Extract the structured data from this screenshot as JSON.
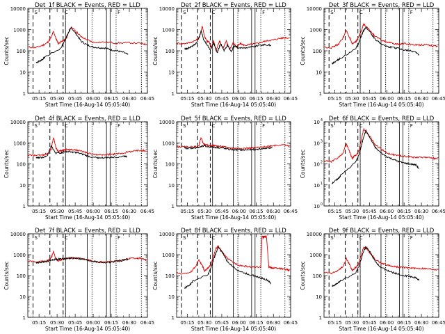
{
  "figure": {
    "panels": [
      {
        "id": "1f",
        "title": "Det_1f BLACK = Events, RED = LLD"
      },
      {
        "id": "2f",
        "title": "Det_2f BLACK = Events, RED = LLD"
      },
      {
        "id": "3f",
        "title": "Det_3f BLACK = Events, RED = LLD"
      },
      {
        "id": "4f",
        "title": "Det_4f BLACK = Events, RED = LLD"
      },
      {
        "id": "5f",
        "title": "Det_5f BLACK = Events, RED = LLD"
      },
      {
        "id": "6f",
        "title": "Det_6f BLACK = Events, RED = LLD"
      },
      {
        "id": "7f",
        "title": "Det_7f BLACK = Events, RED = LLD"
      },
      {
        "id": "8f",
        "title": "Det_8f BLACK = Events, RED = LLD"
      },
      {
        "id": "9f",
        "title": "Det_9f BLACK = Events, RED = LLD"
      }
    ],
    "xlabel": "Start Time (16-Aug-14 05:05:40)",
    "ylabel": "Counts/sec",
    "colors": {
      "events": "#000000",
      "lld": "#dd0000"
    }
  },
  "chart_data": {
    "type": "line",
    "layout": "3x3 grid of log-scale time series",
    "x_axis": {
      "unit": "UT time (16-Aug-14)",
      "range": [
        "05:05:40",
        "06:45:00"
      ],
      "tick_labels": [
        "05:15",
        "05:30",
        "05:45",
        "06:00",
        "06:15",
        "06:30",
        "06:45"
      ],
      "tick_minutes": [
        15,
        30,
        45,
        60,
        75,
        90,
        105
      ]
    },
    "y_axis": {
      "scale": "log",
      "range": [
        1,
        10000
      ],
      "tick_labels_plain": [
        "1",
        "10",
        "100",
        "1000",
        "10000"
      ],
      "tick_labels_power": [
        "10",
        "10",
        "10",
        "10",
        "10"
      ],
      "tick_exponents": [
        "0",
        "1",
        "2",
        "3",
        "4"
      ],
      "panel_6f_uses_power_labels": true
    },
    "annotations": {
      "corner_letters": [
        "S",
        "F",
        "C"
      ],
      "corner_letter_times": [
        "05:10",
        "06:19",
        "05:35"
      ],
      "dashed_line_times": [
        "05:10",
        "05:24",
        "05:35"
      ],
      "solid_line_times": [
        "05:37",
        "05:55",
        "06:11",
        "06:14"
      ],
      "dotted_line_times": [
        "05:59",
        "06:19",
        "06:40"
      ]
    },
    "series_names": [
      "Events",
      "LLD"
    ],
    "panels": [
      {
        "id": "1f",
        "LLD": {
          "minutes": [
            5.7,
            12,
            18,
            22,
            25,
            27,
            29,
            31,
            34,
            36,
            38,
            40,
            42,
            46,
            50,
            55,
            60,
            70,
            80,
            90,
            100,
            104
          ],
          "values": [
            150,
            140,
            180,
            240,
            420,
            820,
            380,
            220,
            280,
            320,
            420,
            900,
            1300,
            800,
            450,
            330,
            250,
            260,
            230,
            240,
            220,
            200
          ]
        },
        "Events": {
          "minutes": [
            12.5,
            15,
            18,
            20,
            33,
            36,
            38,
            40,
            42,
            46,
            50,
            55,
            60,
            65,
            70,
            75,
            80,
            85,
            89
          ],
          "values": [
            28,
            32,
            40,
            52,
            130,
            280,
            480,
            850,
            1200,
            600,
            280,
            190,
            150,
            140,
            135,
            110,
            100,
            85,
            65
          ]
        }
      },
      {
        "id": "2f",
        "LLD": {
          "minutes": [
            5.7,
            12,
            18,
            23,
            26,
            28,
            30,
            32,
            34,
            36,
            38,
            40,
            43,
            46,
            49,
            52,
            55,
            58,
            61,
            65,
            70,
            75,
            80,
            85,
            90,
            95,
            100,
            104
          ],
          "values": [
            230,
            220,
            250,
            320,
            500,
            1500,
            480,
            280,
            260,
            140,
            300,
            100,
            300,
            130,
            280,
            120,
            240,
            150,
            220,
            180,
            200,
            220,
            260,
            300,
            330,
            380,
            420,
            400
          ]
        },
        "Events": {
          "minutes": [
            12.5,
            15,
            18,
            22,
            25,
            27,
            29,
            32,
            35,
            38,
            41,
            44,
            47,
            50,
            53,
            56,
            60,
            65,
            70,
            75,
            80,
            85,
            88
          ],
          "values": [
            120,
            130,
            150,
            200,
            380,
            900,
            350,
            200,
            110,
            230,
            80,
            220,
            100,
            190,
            90,
            170,
            130,
            140,
            150,
            170,
            190,
            190,
            180
          ]
        }
      },
      {
        "id": "3f",
        "LLD": {
          "minutes": [
            5.7,
            12,
            18,
            22,
            25,
            28,
            30,
            32,
            34,
            36,
            38,
            40,
            42,
            46,
            50,
            55,
            60,
            65,
            70,
            75,
            80,
            85,
            90,
            95,
            100,
            104
          ],
          "values": [
            150,
            140,
            200,
            400,
            900,
            400,
            200,
            250,
            300,
            500,
            900,
            1800,
            1500,
            800,
            480,
            320,
            260,
            220,
            200,
            220,
            200,
            190,
            190,
            200,
            170,
            160
          ]
        },
        "Events": {
          "minutes": [
            12.5,
            15,
            18,
            20,
            33,
            36,
            38,
            40,
            42,
            46,
            50,
            55,
            60,
            65,
            70,
            75,
            80,
            85,
            88
          ],
          "values": [
            25,
            30,
            38,
            45,
            120,
            250,
            500,
            900,
            1300,
            700,
            350,
            220,
            160,
            140,
            130,
            110,
            100,
            90,
            60
          ]
        }
      },
      {
        "id": "4f",
        "LLD": {
          "minutes": [
            5.7,
            12,
            18,
            22,
            25,
            27,
            29,
            31,
            33,
            35,
            38,
            42,
            46,
            50,
            55,
            60,
            65,
            70,
            75,
            80,
            85,
            90,
            95,
            100,
            104
          ],
          "values": [
            260,
            250,
            260,
            310,
            500,
            1800,
            600,
            380,
            420,
            450,
            480,
            470,
            450,
            400,
            330,
            280,
            270,
            270,
            280,
            300,
            330,
            380,
            420,
            440,
            410
          ]
        },
        "Events": {
          "minutes": [
            12.5,
            15,
            18,
            22,
            25,
            29,
            33,
            36,
            40,
            45,
            50,
            55,
            60,
            65,
            70,
            75,
            80,
            85,
            88
          ],
          "values": [
            190,
            200,
            200,
            260,
            700,
            330,
            330,
            380,
            380,
            350,
            300,
            240,
            200,
            195,
            195,
            200,
            210,
            230,
            230
          ]
        }
      },
      {
        "id": "5f",
        "LLD": {
          "minutes": [
            5.7,
            12,
            18,
            22,
            25,
            27,
            29,
            31,
            34,
            38,
            42,
            46,
            50,
            55,
            60,
            65,
            70,
            75,
            80,
            85,
            90,
            95,
            100,
            104
          ],
          "values": [
            650,
            640,
            640,
            650,
            700,
            1800,
            900,
            780,
            750,
            740,
            700,
            650,
            600,
            560,
            550,
            550,
            560,
            590,
            620,
            680,
            750,
            800,
            780,
            700
          ]
        },
        "Events": {
          "minutes": [
            12.5,
            15,
            18,
            22,
            25,
            29,
            33,
            38,
            42,
            46,
            50,
            55,
            60,
            65,
            70,
            75,
            80,
            85,
            89
          ],
          "values": [
            550,
            560,
            560,
            580,
            600,
            700,
            650,
            620,
            600,
            560,
            500,
            470,
            460,
            460,
            470,
            490,
            520,
            560,
            600
          ]
        }
      },
      {
        "id": "6f",
        "LLD": {
          "minutes": [
            5.7,
            12,
            18,
            22,
            25,
            28,
            30,
            32,
            34,
            36,
            38,
            40,
            42,
            46,
            50,
            55,
            60,
            65,
            70,
            75,
            80,
            85,
            90,
            95,
            100,
            104
          ],
          "values": [
            140,
            130,
            200,
            320,
            900,
            350,
            180,
            240,
            280,
            450,
            1500,
            4500,
            3500,
            1800,
            800,
            500,
            330,
            280,
            250,
            230,
            220,
            200,
            210,
            200,
            190,
            170
          ]
        },
        "Events": {
          "minutes": [
            12.5,
            15,
            18,
            20,
            33,
            36,
            38,
            40,
            42,
            46,
            50,
            55,
            60,
            65,
            70,
            75,
            80,
            85,
            88
          ],
          "values": [
            12,
            15,
            20,
            28,
            120,
            280,
            700,
            2000,
            3800,
            1500,
            600,
            330,
            220,
            170,
            130,
            110,
            100,
            90,
            60
          ]
        }
      },
      {
        "id": "7f",
        "LLD": {
          "minutes": [
            5.7,
            12,
            18,
            22,
            25,
            27,
            29,
            31,
            34,
            38,
            42,
            46,
            50,
            55,
            60,
            65,
            70,
            75,
            80,
            85,
            90,
            95,
            100,
            104
          ],
          "values": [
            480,
            470,
            470,
            520,
            700,
            1400,
            600,
            520,
            580,
            650,
            700,
            700,
            650,
            560,
            500,
            450,
            440,
            460,
            500,
            560,
            650,
            700,
            650,
            560
          ]
        },
        "Events": {
          "minutes": [
            12.5,
            15,
            18,
            22,
            25,
            29,
            33,
            38,
            42,
            46,
            50,
            55,
            60,
            65,
            70,
            75,
            80,
            85,
            89
          ],
          "values": [
            420,
            430,
            450,
            480,
            550,
            600,
            620,
            650,
            680,
            680,
            620,
            540,
            480,
            430,
            420,
            440,
            480,
            540,
            600
          ]
        }
      },
      {
        "id": "8f",
        "LLD": {
          "minutes": [
            5.7,
            12,
            18,
            22,
            25,
            28,
            30,
            32,
            34,
            36,
            38,
            40,
            42,
            46,
            50,
            55,
            60,
            65,
            70,
            75,
            79,
            80,
            82,
            84,
            86,
            88,
            90,
            95,
            100,
            104
          ],
          "values": [
            130,
            120,
            150,
            260,
            600,
            300,
            170,
            200,
            250,
            400,
            900,
            2000,
            2500,
            1200,
            650,
            420,
            320,
            280,
            260,
            250,
            240,
            7000,
            7500,
            7000,
            250,
            240,
            230,
            220,
            200,
            180
          ]
        },
        "Events": {
          "minutes": [
            12.5,
            15,
            18,
            20,
            33,
            36,
            38,
            40,
            42,
            46,
            50,
            55,
            60,
            65,
            70,
            75,
            80,
            85,
            88
          ],
          "values": [
            25,
            30,
            40,
            55,
            110,
            260,
            600,
            1300,
            2200,
            1200,
            450,
            260,
            170,
            130,
            110,
            90,
            75,
            60,
            40
          ]
        }
      },
      {
        "id": "9f",
        "LLD": {
          "minutes": [
            5.7,
            12,
            18,
            22,
            25,
            28,
            30,
            32,
            34,
            36,
            38,
            40,
            42,
            46,
            50,
            55,
            60,
            65,
            70,
            75,
            80,
            85,
            90,
            95,
            100,
            104
          ],
          "values": [
            140,
            130,
            170,
            280,
            650,
            320,
            170,
            220,
            260,
            420,
            1000,
            2300,
            2000,
            1100,
            600,
            400,
            320,
            280,
            260,
            240,
            230,
            220,
            220,
            210,
            200,
            190
          ]
        },
        "Events": {
          "minutes": [
            12.5,
            15,
            18,
            20,
            33,
            36,
            38,
            40,
            42,
            46,
            50,
            55,
            60,
            65,
            70,
            75,
            80,
            85,
            88
          ],
          "values": [
            30,
            35,
            45,
            55,
            130,
            280,
            650,
            1500,
            2400,
            1200,
            450,
            250,
            180,
            140,
            120,
            100,
            90,
            80,
            60
          ]
        }
      }
    ]
  }
}
